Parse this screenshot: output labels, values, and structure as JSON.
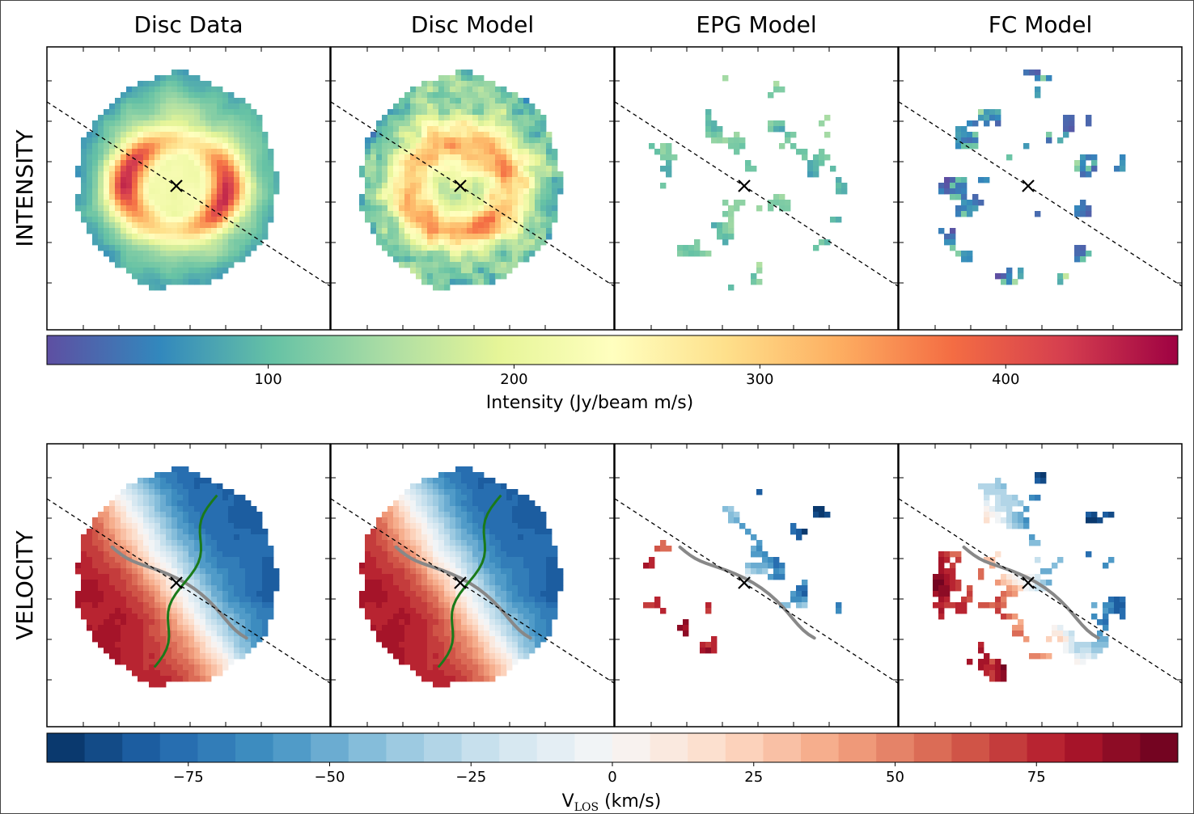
{
  "chart_data": {
    "type": "heatmap",
    "panel_titles": [
      "Disc Data",
      "Disc Model",
      "EPG Model",
      "FC Model"
    ],
    "row_labels": [
      "INTENSITY",
      "VELOCITY"
    ],
    "intensity_colorbar": {
      "label": "Intensity (Jy/beam m/s)",
      "range": [
        10,
        470
      ],
      "ticks": [
        100,
        200,
        300,
        400
      ],
      "tick_labels": [
        "100",
        "200",
        "300",
        "400"
      ],
      "colormap": "Spectral_r",
      "stops": [
        "#5e4fa2",
        "#3288bd",
        "#66c2a5",
        "#abdda4",
        "#e6f598",
        "#ffffbf",
        "#fee08b",
        "#fdae61",
        "#f46d43",
        "#d53e4f",
        "#9e0142"
      ]
    },
    "velocity_colorbar": {
      "label_main": "V",
      "label_sub": "LOS",
      "label_unit": " (km/s)",
      "range": [
        -100,
        100
      ],
      "ticks": [
        -75,
        -50,
        -25,
        0,
        25,
        50,
        75
      ],
      "tick_labels": [
        "−75",
        "−50",
        "−25",
        "0",
        "25",
        "50",
        "75"
      ],
      "n_bins": 30,
      "colormap": "RdBu_r"
    },
    "panels": [
      {
        "title": "Disc Data",
        "intensity_fill": 1.0,
        "intensity_mode": "data",
        "velocity_fill": 1.0
      },
      {
        "title": "Disc Model",
        "intensity_fill": 1.0,
        "intensity_mode": "model",
        "velocity_fill": 1.0
      },
      {
        "title": "EPG Model",
        "intensity_fill": 0.28,
        "intensity_mode": "sparse",
        "velocity_fill": 0.24
      },
      {
        "title": "FC Model",
        "intensity_fill": 0.42,
        "intensity_mode": "sparse",
        "velocity_fill": 0.4
      }
    ],
    "grid": false,
    "annotations": [
      "center cross marker",
      "dashed major axis line",
      "grey rotation-curve trace",
      "green zero-velocity contour"
    ]
  }
}
